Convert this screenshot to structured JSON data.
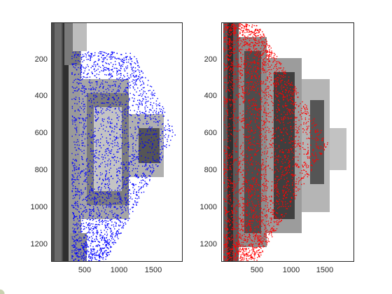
{
  "colors": {
    "left_overlay": "#0000ff",
    "right_overlay": "#ff0000",
    "axis": "#262626",
    "image_dark": "#3a3a3a",
    "image_mid": "#8a8a8a",
    "image_light": "#d9d9d9"
  },
  "left_panel": {
    "yticks": [
      "200",
      "400",
      "600",
      "800",
      "1000",
      "1200"
    ],
    "xticks": [
      "500",
      "1000",
      "1500"
    ]
  },
  "right_panel": {
    "yticks": [
      "200",
      "400",
      "600",
      "800",
      "1000",
      "1200"
    ],
    "xticks": [
      "500",
      "1000",
      "1500"
    ]
  }
}
